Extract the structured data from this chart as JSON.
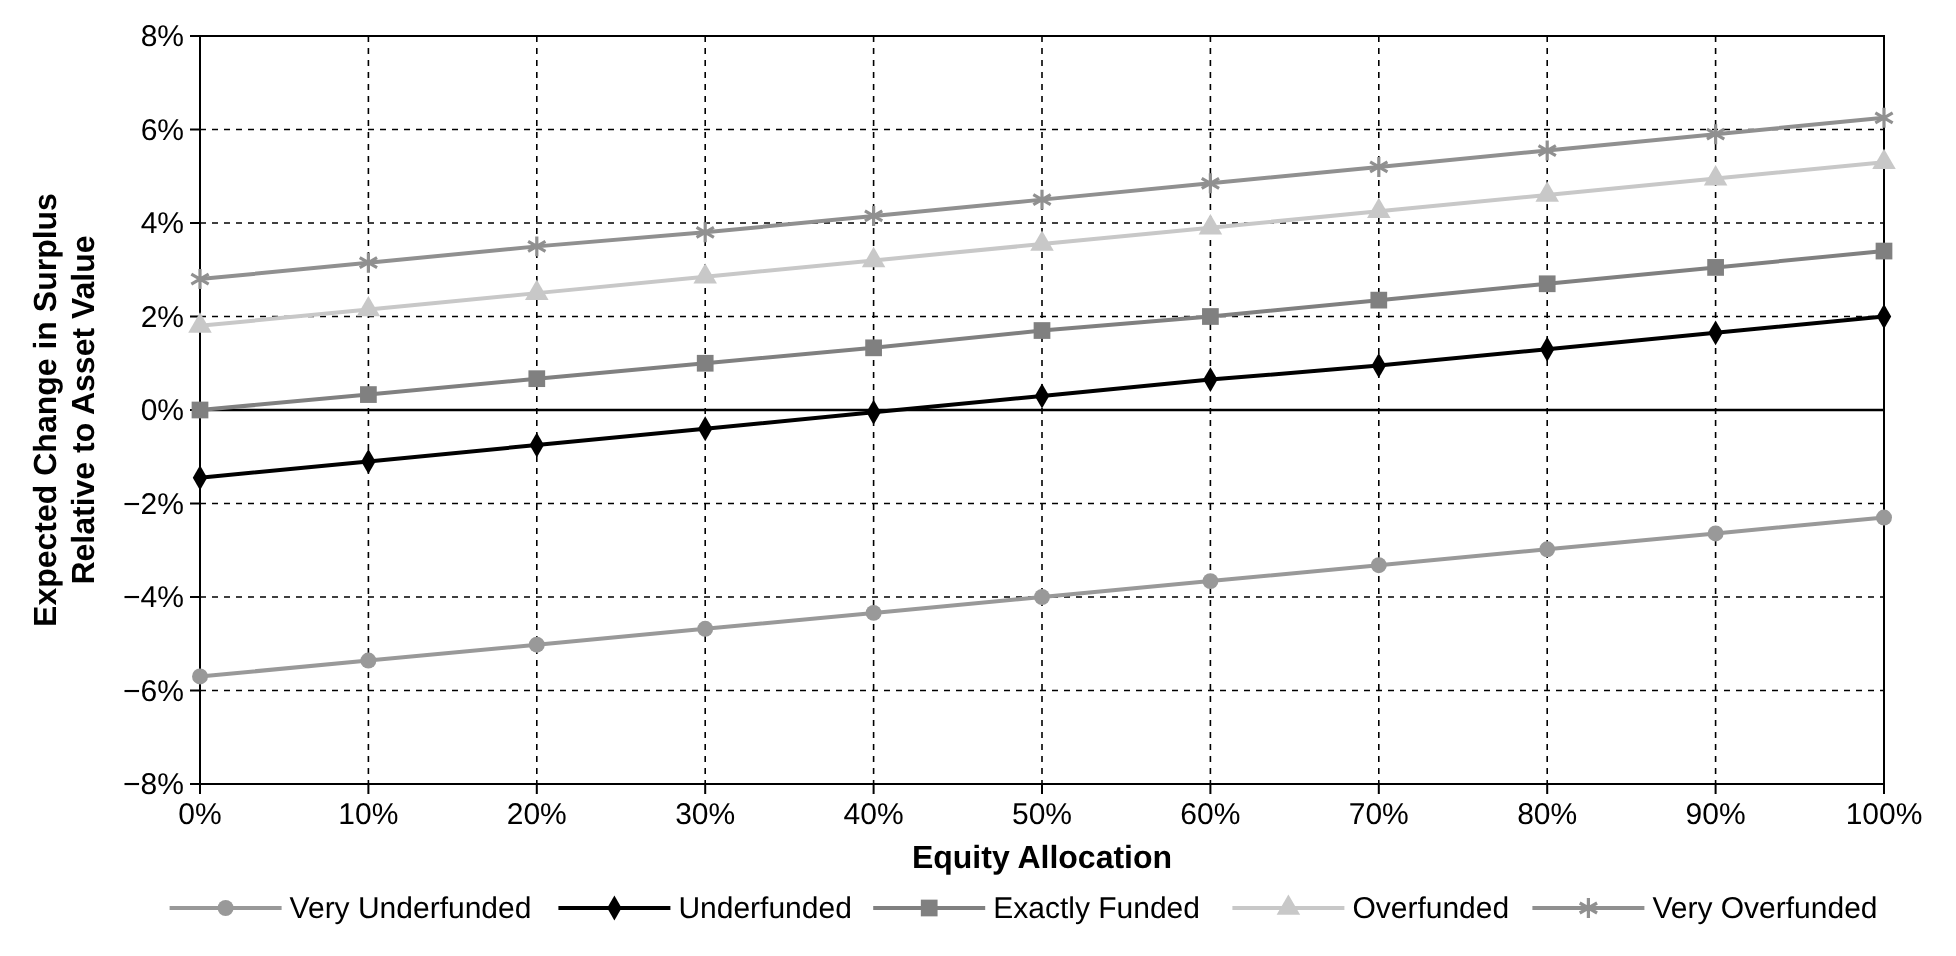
{
  "chart_data": {
    "type": "line",
    "xlabel": "Equity Allocation",
    "ylabel": "Expected Change in Surplus\nRelative to Asset Value",
    "x": [
      0,
      10,
      20,
      30,
      40,
      50,
      60,
      70,
      80,
      90,
      100
    ],
    "xlim": [
      0,
      100
    ],
    "xticks": [
      {
        "value": 0,
        "label": "0%"
      },
      {
        "value": 10,
        "label": "10%"
      },
      {
        "value": 20,
        "label": "20%"
      },
      {
        "value": 30,
        "label": "30%"
      },
      {
        "value": 40,
        "label": "40%"
      },
      {
        "value": 50,
        "label": "50%"
      },
      {
        "value": 60,
        "label": "60%"
      },
      {
        "value": 70,
        "label": "70%"
      },
      {
        "value": 80,
        "label": "80%"
      },
      {
        "value": 90,
        "label": "90%"
      },
      {
        "value": 100,
        "label": "100%"
      }
    ],
    "ylim": [
      -8,
      8
    ],
    "yticks": [
      {
        "value": -8,
        "label": "−8%"
      },
      {
        "value": -6,
        "label": "−6%"
      },
      {
        "value": -4,
        "label": "−4%"
      },
      {
        "value": -2,
        "label": "−2%"
      },
      {
        "value": 0,
        "label": "0%"
      },
      {
        "value": 2,
        "label": "2%"
      },
      {
        "value": 4,
        "label": "4%"
      },
      {
        "value": 6,
        "label": "6%"
      },
      {
        "value": 8,
        "label": "8%"
      }
    ],
    "grid": true,
    "legend": "bottom",
    "line_style": "solid",
    "ref_lines": [
      {
        "axis": "y",
        "value": 0,
        "color": "#000000"
      }
    ],
    "series": [
      {
        "name": "Very Underfunded",
        "color": "#999999",
        "marker": "circle",
        "values": [
          -5.7,
          -5.36,
          -5.02,
          -4.68,
          -4.34,
          -4.0,
          -3.66,
          -3.32,
          -2.98,
          -2.64,
          -2.3
        ]
      },
      {
        "name": "Underfunded",
        "color": "#000000",
        "marker": "diamond",
        "values": [
          -1.45,
          -1.1,
          -0.75,
          -0.4,
          -0.05,
          0.3,
          0.65,
          0.95,
          1.3,
          1.65,
          2.0
        ]
      },
      {
        "name": "Exactly Funded",
        "color": "#808080",
        "marker": "square",
        "values": [
          0,
          0.33,
          0.67,
          1.0,
          1.33,
          1.7,
          2.0,
          2.35,
          2.7,
          3.05,
          3.4
        ]
      },
      {
        "name": "Overfunded",
        "color": "#c8c8c8",
        "marker": "triangle",
        "values": [
          1.8,
          2.15,
          2.5,
          2.85,
          3.2,
          3.55,
          3.9,
          4.25,
          4.6,
          4.95,
          5.3
        ]
      },
      {
        "name": "Very Overfunded",
        "color": "#909090",
        "marker": "cross",
        "values": [
          2.8,
          3.15,
          3.5,
          3.8,
          4.15,
          4.5,
          4.85,
          5.2,
          5.55,
          5.9,
          6.25
        ]
      }
    ]
  }
}
